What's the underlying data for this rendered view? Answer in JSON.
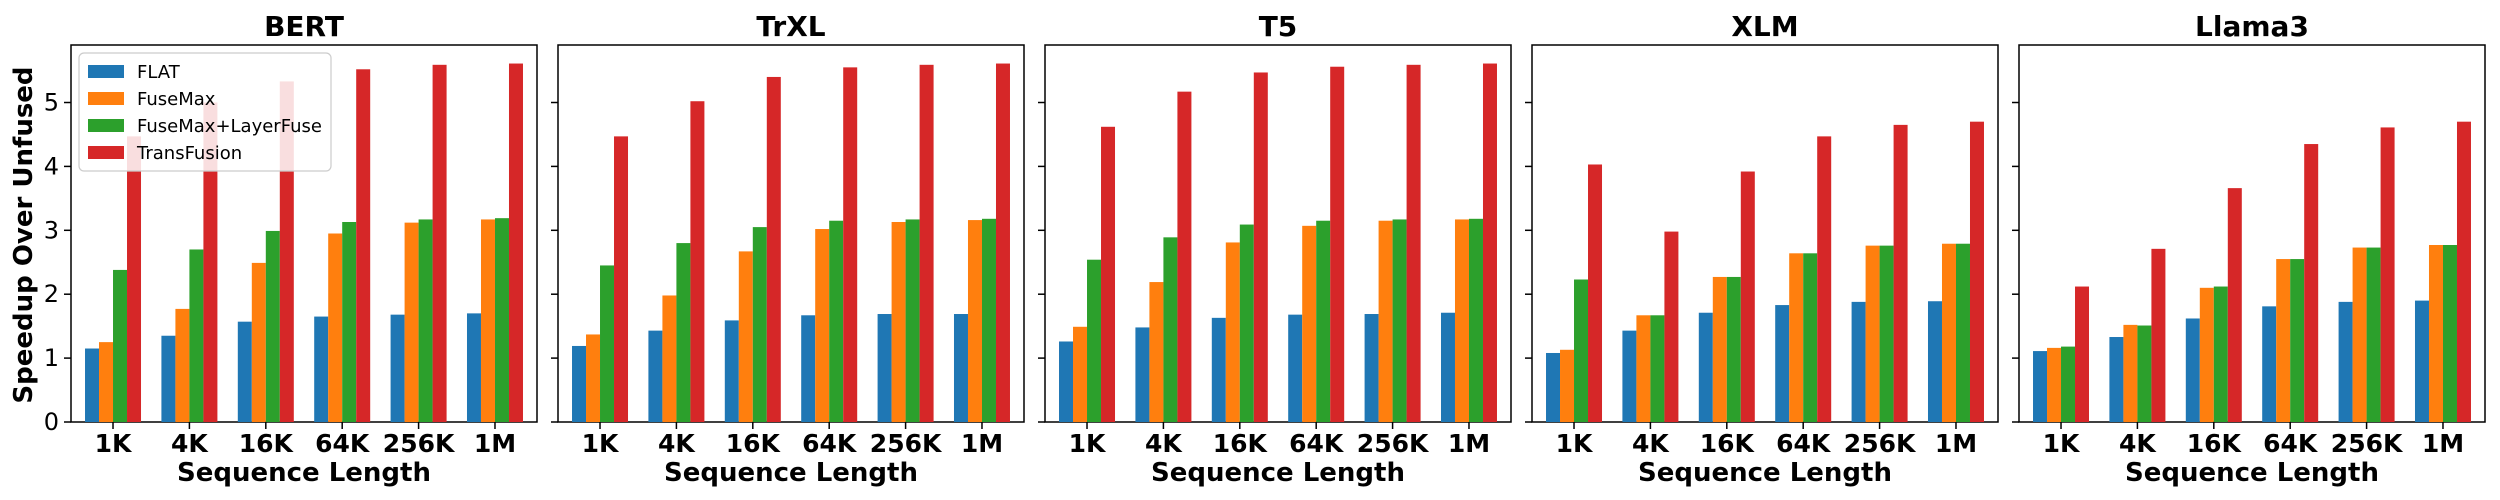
{
  "ylabel": "Speedup Over Unfused",
  "colors": {
    "FLAT": "#1f77b4",
    "FuseMax": "#ff7f0e",
    "FuseMax+LayerFuse": "#2ca02c",
    "TransFusion": "#d62728"
  },
  "legend": {
    "placement": "top-left of first panel",
    "entries": [
      "FLAT",
      "FuseMax",
      "FuseMax+LayerFuse",
      "TransFusion"
    ]
  },
  "chart_data": [
    {
      "type": "bar",
      "title": "BERT",
      "xlabel": "Sequence Length",
      "ylabel": "Speedup Over Unfused",
      "ylim": [
        0,
        5.9
      ],
      "yticks": [
        0,
        1,
        2,
        3,
        4,
        5
      ],
      "categories": [
        "1K",
        "4K",
        "16K",
        "64K",
        "256K",
        "1M"
      ],
      "series": [
        {
          "name": "FLAT",
          "values": [
            1.15,
            1.35,
            1.57,
            1.65,
            1.68,
            1.7
          ]
        },
        {
          "name": "FuseMax",
          "values": [
            1.25,
            1.77,
            2.49,
            2.95,
            3.12,
            3.17
          ]
        },
        {
          "name": "FuseMax+LayerFuse",
          "values": [
            2.38,
            2.7,
            2.99,
            3.13,
            3.17,
            3.19
          ]
        },
        {
          "name": "TransFusion",
          "values": [
            4.47,
            5.0,
            5.33,
            5.52,
            5.59,
            5.61
          ]
        }
      ]
    },
    {
      "type": "bar",
      "title": "TrXL",
      "xlabel": "Sequence Length",
      "ylim": [
        0,
        5.9
      ],
      "yticks": [
        0,
        1,
        2,
        3,
        4,
        5
      ],
      "categories": [
        "1K",
        "4K",
        "16K",
        "64K",
        "256K",
        "1M"
      ],
      "series": [
        {
          "name": "FLAT",
          "values": [
            1.19,
            1.43,
            1.59,
            1.67,
            1.69,
            1.69
          ]
        },
        {
          "name": "FuseMax",
          "values": [
            1.37,
            1.98,
            2.67,
            3.02,
            3.13,
            3.16
          ]
        },
        {
          "name": "FuseMax+LayerFuse",
          "values": [
            2.45,
            2.8,
            3.05,
            3.15,
            3.17,
            3.18
          ]
        },
        {
          "name": "TransFusion",
          "values": [
            4.47,
            5.02,
            5.4,
            5.55,
            5.59,
            5.61
          ]
        }
      ]
    },
    {
      "type": "bar",
      "title": "T5",
      "xlabel": "Sequence Length",
      "ylim": [
        0,
        5.9
      ],
      "yticks": [
        0,
        1,
        2,
        3,
        4,
        5
      ],
      "categories": [
        "1K",
        "4K",
        "16K",
        "64K",
        "256K",
        "1M"
      ],
      "series": [
        {
          "name": "FLAT",
          "values": [
            1.26,
            1.48,
            1.63,
            1.68,
            1.69,
            1.71
          ]
        },
        {
          "name": "FuseMax",
          "values": [
            1.49,
            2.19,
            2.81,
            3.07,
            3.15,
            3.17
          ]
        },
        {
          "name": "FuseMax+LayerFuse",
          "values": [
            2.54,
            2.89,
            3.09,
            3.15,
            3.17,
            3.18
          ]
        },
        {
          "name": "TransFusion",
          "values": [
            4.62,
            5.17,
            5.47,
            5.56,
            5.59,
            5.61
          ]
        }
      ]
    },
    {
      "type": "bar",
      "title": "XLM",
      "xlabel": "Sequence Length",
      "ylim": [
        0,
        5.9
      ],
      "yticks": [
        0,
        1,
        2,
        3,
        4,
        5
      ],
      "categories": [
        "1K",
        "4K",
        "16K",
        "64K",
        "256K",
        "1M"
      ],
      "series": [
        {
          "name": "FLAT",
          "values": [
            1.08,
            1.43,
            1.71,
            1.83,
            1.88,
            1.89
          ]
        },
        {
          "name": "FuseMax",
          "values": [
            1.13,
            1.67,
            2.27,
            2.64,
            2.76,
            2.79
          ]
        },
        {
          "name": "FuseMax+LayerFuse",
          "values": [
            2.23,
            1.67,
            2.27,
            2.64,
            2.76,
            2.79
          ]
        },
        {
          "name": "TransFusion",
          "values": [
            4.03,
            2.98,
            3.92,
            4.47,
            4.65,
            4.7
          ]
        }
      ]
    },
    {
      "type": "bar",
      "title": "Llama3",
      "xlabel": "Sequence Length",
      "ylim": [
        0,
        5.9
      ],
      "yticks": [
        0,
        1,
        2,
        3,
        4,
        5
      ],
      "categories": [
        "1K",
        "4K",
        "16K",
        "64K",
        "256K",
        "1M"
      ],
      "series": [
        {
          "name": "FLAT",
          "values": [
            1.11,
            1.33,
            1.62,
            1.81,
            1.88,
            1.9
          ]
        },
        {
          "name": "FuseMax",
          "values": [
            1.16,
            1.52,
            2.1,
            2.55,
            2.73,
            2.77
          ]
        },
        {
          "name": "FuseMax+LayerFuse",
          "values": [
            1.18,
            1.51,
            2.12,
            2.55,
            2.73,
            2.77
          ]
        },
        {
          "name": "TransFusion",
          "values": [
            2.12,
            2.71,
            3.66,
            4.35,
            4.61,
            4.7
          ]
        }
      ]
    }
  ]
}
